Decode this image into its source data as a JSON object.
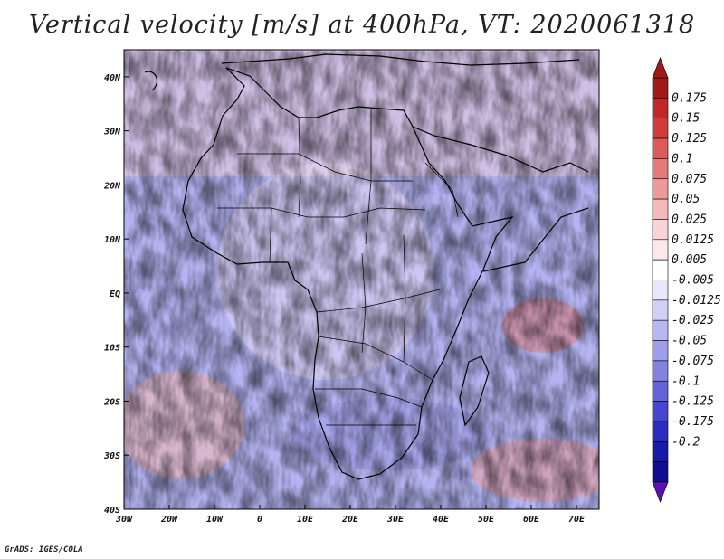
{
  "title": "Vertical velocity [m/s] at 400hPa, VT: 2020061318",
  "credit": "GrADS: IGES/COLA",
  "map": {
    "lat_range": [
      -40,
      45
    ],
    "lon_range": [
      -30,
      75
    ],
    "lat_ticks": [
      "40N",
      "30N",
      "20N",
      "10N",
      "EQ",
      "10S",
      "20S",
      "30S",
      "40S"
    ],
    "lon_ticks": [
      "30W",
      "20W",
      "10W",
      "0",
      "10E",
      "20E",
      "30E",
      "40E",
      "50E",
      "60E",
      "70E"
    ],
    "field": "vertical velocity",
    "units": "m/s",
    "level": "400hPa"
  },
  "colorbar": {
    "labels": [
      "0.175",
      "0.15",
      "0.125",
      "0.1",
      "0.075",
      "0.05",
      "0.025",
      "0.0125",
      "0.005",
      "-0.005",
      "-0.0125",
      "-0.025",
      "-0.05",
      "-0.075",
      "-0.1",
      "-0.125",
      "-0.175",
      "-0.2"
    ],
    "colors": [
      "#a01818",
      "#c02828",
      "#d03c3c",
      "#dc5a5a",
      "#e67a7a",
      "#ee9a9a",
      "#f4baba",
      "#f8d4d4",
      "#fbe9e9",
      "#ffffff",
      "#e8e8fb",
      "#d0d0f6",
      "#b8b8f0",
      "#9e9eea",
      "#8282e2",
      "#6464da",
      "#4646d0",
      "#2c2cc0",
      "#1a1aa8",
      "#0e0e8e"
    ]
  },
  "colors": {
    "land_outline": "#000000",
    "background": "#ffffff"
  }
}
